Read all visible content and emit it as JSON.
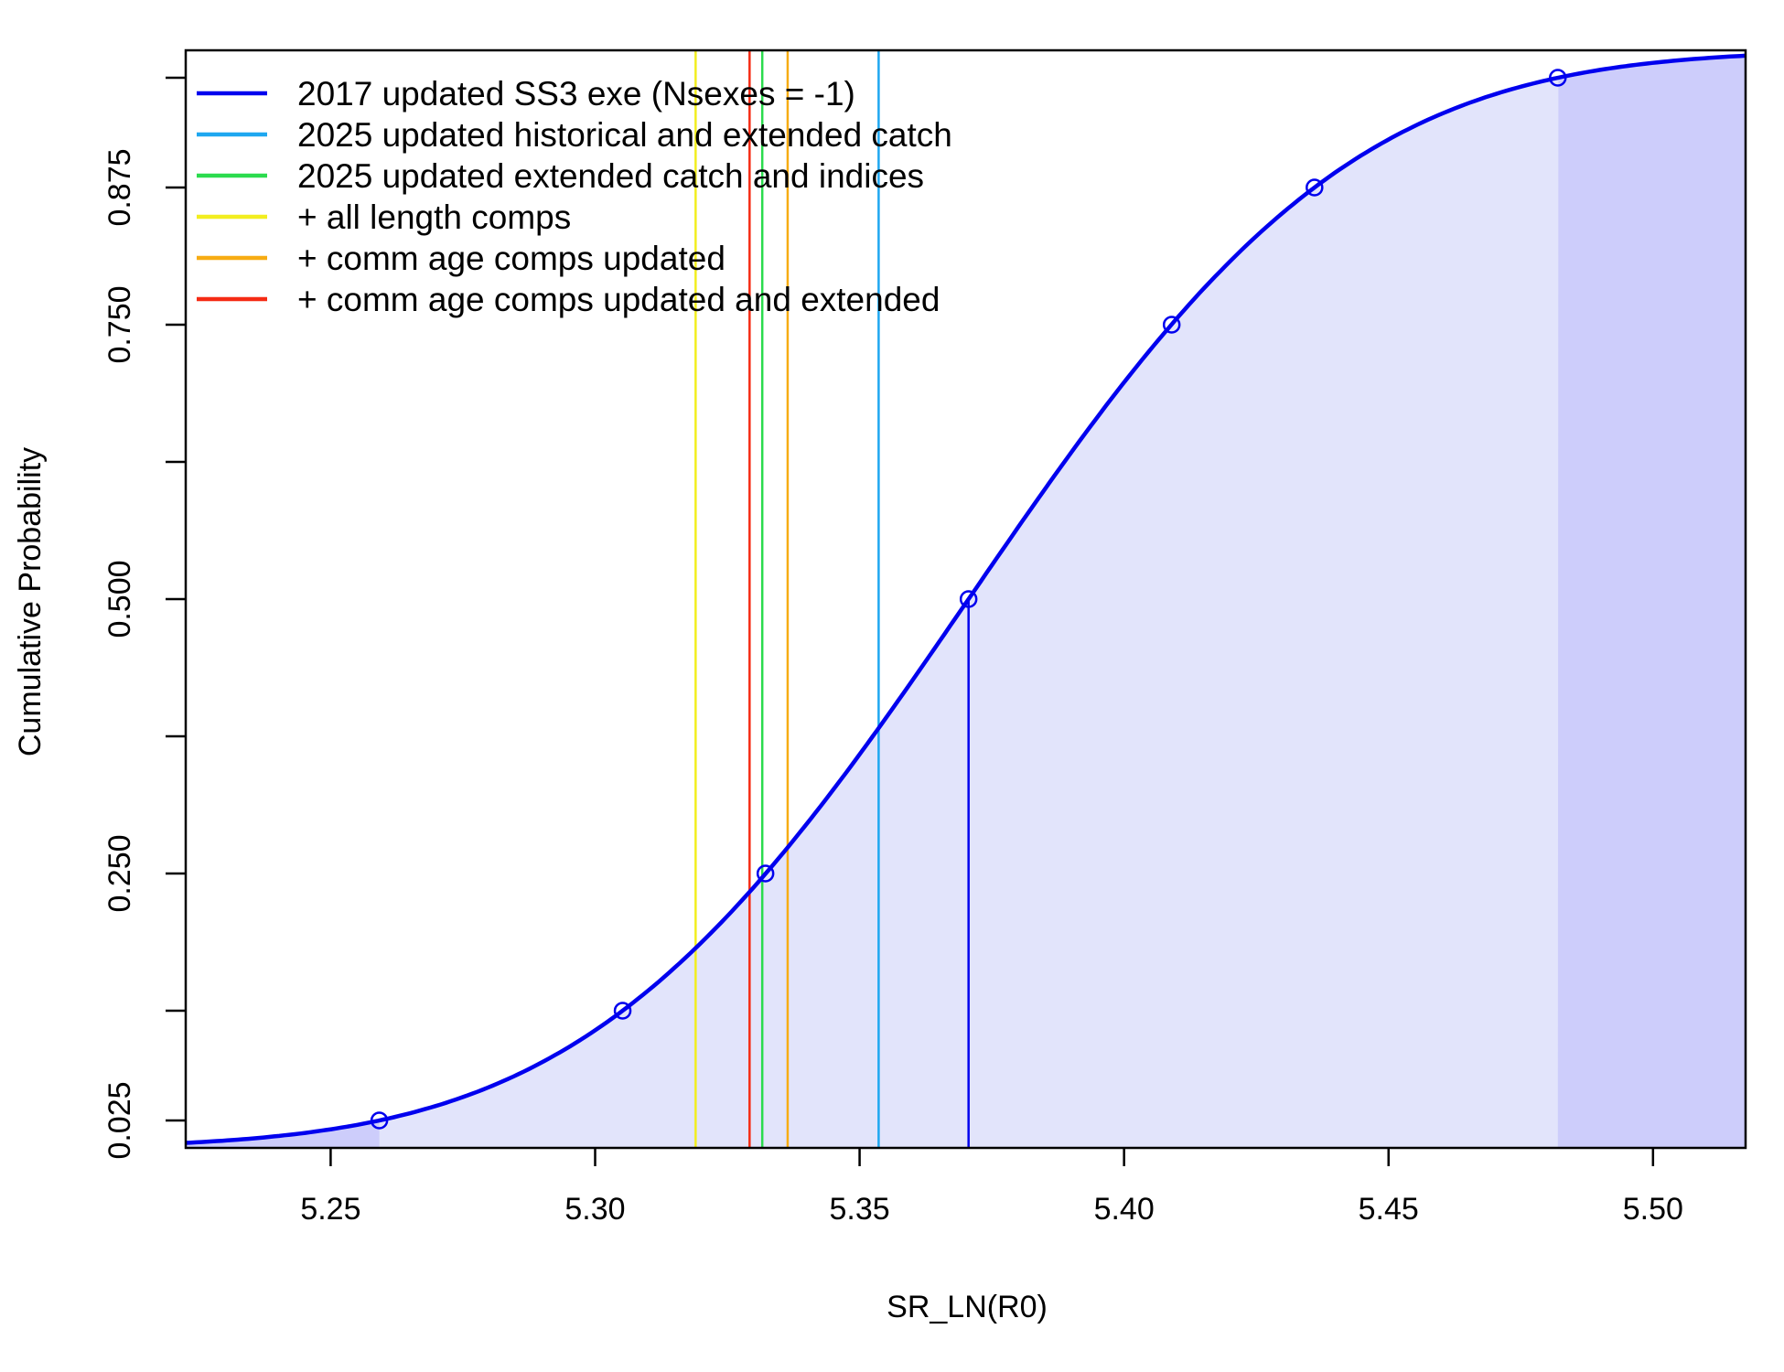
{
  "chart_data": {
    "type": "line",
    "title": "",
    "xlabel": "SR_LN(R0)",
    "ylabel": "Cumulative Probability",
    "xlim": [
      5.2226,
      5.5175
    ],
    "ylim": [
      0.0,
      1.0
    ],
    "xticks": [
      5.25,
      5.3,
      5.35,
      5.4,
      5.45,
      5.5
    ],
    "xtick_labels": [
      "5.25",
      "5.30",
      "5.35",
      "5.40",
      "5.45",
      "5.50"
    ],
    "yticks": [
      0.025,
      0.125,
      0.25,
      0.375,
      0.5,
      0.625,
      0.75,
      0.875,
      0.975
    ],
    "ytick_labels": [
      "0.025",
      "",
      "0.250",
      "",
      "0.500",
      "",
      "0.750",
      "0.875",
      ""
    ],
    "grid": false,
    "legend_position": "top-left",
    "cdf": {
      "mean": 5.3706,
      "sd": 0.05685,
      "color": "#0000ee",
      "fill_color": "#e2e4fb",
      "tail_color": "#cdcdfb"
    },
    "quantile_points": [
      {
        "p": 0.025,
        "x": 5.2592
      },
      {
        "p": 0.125,
        "x": 5.3052
      },
      {
        "p": 0.25,
        "x": 5.3322
      },
      {
        "p": 0.5,
        "x": 5.3706
      },
      {
        "p": 0.75,
        "x": 5.409
      },
      {
        "p": 0.875,
        "x": 5.436
      },
      {
        "p": 0.975,
        "x": 5.482
      }
    ],
    "median_line_x": 5.3706,
    "reference_lines": [
      {
        "label": "2025 updated historical and extended catch",
        "x": 5.3536,
        "color": "#1ea7f0"
      },
      {
        "label": "2025 updated extended catch and indices",
        "x": 5.3316,
        "color": "#2bdb4e"
      },
      {
        "label": "+ all length comps",
        "x": 5.319,
        "color": "#f2ee1f"
      },
      {
        "label": "+ comm age comps updated",
        "x": 5.3364,
        "color": "#f7ac13"
      },
      {
        "label": "+ comm age comps updated and extended",
        "x": 5.3292,
        "color": "#f52b14"
      }
    ],
    "legend": [
      {
        "label": "2017 updated SS3 exe (Nsexes = -1)",
        "color": "#0000ee"
      },
      {
        "label": "2025 updated historical and extended catch",
        "color": "#1ea7f0"
      },
      {
        "label": "2025 updated extended catch and indices",
        "color": "#2bdb4e"
      },
      {
        "label": "+ all length comps",
        "color": "#f2ee1f"
      },
      {
        "label": "+ comm age comps updated",
        "color": "#f7ac13"
      },
      {
        "label": "+ comm age comps updated and extended",
        "color": "#f52b14"
      }
    ]
  }
}
